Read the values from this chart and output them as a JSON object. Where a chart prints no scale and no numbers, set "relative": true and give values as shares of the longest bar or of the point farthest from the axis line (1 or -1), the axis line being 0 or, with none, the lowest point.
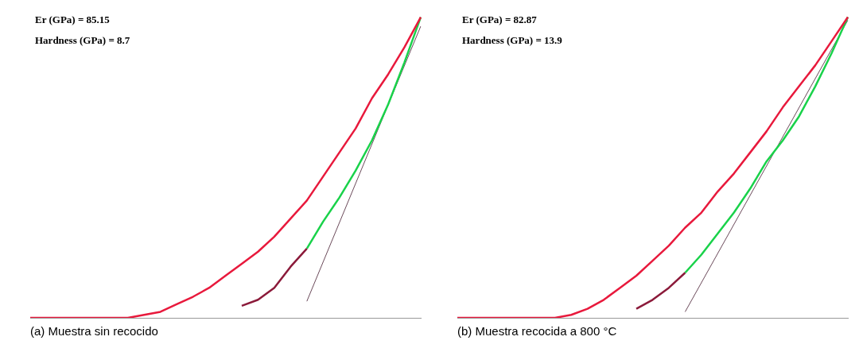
{
  "chart_data": [
    {
      "type": "line",
      "title": "(a)  Muestra sin recocido",
      "relative": true,
      "categories": [
        null,
        null,
        null,
        null,
        null,
        null,
        null,
        null,
        null,
        null,
        null,
        null,
        null,
        null,
        null,
        null,
        null,
        null,
        null,
        null,
        null,
        null,
        null,
        null,
        null
      ],
      "series": [
        {
          "color": "#e8193c",
          "values": [
            0,
            0,
            0,
            0,
            0,
            0,
            0,
            0.01,
            0.02,
            0.045,
            0.07,
            0.1,
            0.14,
            0.18,
            0.22,
            0.27,
            0.33,
            0.39,
            0.47,
            0.55,
            0.63,
            0.73,
            0.81,
            0.9,
            1
          ]
        },
        {
          "color": "#8b1a3a",
          "values": [
            null,
            null,
            null,
            null,
            null,
            null,
            null,
            null,
            null,
            null,
            null,
            null,
            null,
            0.04,
            0.06,
            0.1,
            0.17,
            0.23,
            null,
            null,
            null,
            null,
            null,
            null,
            null
          ]
        },
        {
          "color": "#19d24a",
          "values": [
            null,
            null,
            null,
            null,
            null,
            null,
            null,
            null,
            null,
            null,
            null,
            null,
            null,
            null,
            null,
            null,
            null,
            0.23,
            0.32,
            0.4,
            0.49,
            0.59,
            0.71,
            0.85,
            1
          ]
        },
        {
          "color": "#6b4a5a",
          "values": [
            null,
            null,
            null,
            null,
            null,
            null,
            null,
            null,
            null,
            null,
            null,
            null,
            null,
            null,
            null,
            null,
            null,
            0.055,
            null,
            null,
            null,
            null,
            null,
            null,
            0.97
          ]
        }
      ],
      "annotations": [
        "Er (GPa) = 85.15",
        "Hardness (GPa) = 8.7"
      ]
    },
    {
      "type": "line",
      "title": "(b) Muestra recocida a 800 °C",
      "relative": true,
      "categories": [
        null,
        null,
        null,
        null,
        null,
        null,
        null,
        null,
        null,
        null,
        null,
        null,
        null,
        null,
        null,
        null,
        null,
        null,
        null,
        null,
        null,
        null,
        null,
        null,
        null
      ],
      "series": [
        {
          "color": "#e8193c",
          "values": [
            0,
            0,
            0,
            0,
            0,
            0,
            0,
            0.01,
            0.03,
            0.06,
            0.1,
            0.14,
            0.19,
            0.24,
            0.3,
            0.35,
            0.42,
            0.48,
            0.55,
            0.62,
            0.7,
            0.77,
            0.84,
            0.92,
            1
          ]
        },
        {
          "color": "#8b1a3a",
          "values": [
            null,
            null,
            null,
            null,
            null,
            null,
            null,
            null,
            null,
            null,
            null,
            0.03,
            0.06,
            0.1,
            0.15,
            null,
            null,
            null,
            null,
            null,
            null,
            null,
            null,
            null,
            null
          ]
        },
        {
          "color": "#19d24a",
          "values": [
            null,
            null,
            null,
            null,
            null,
            null,
            null,
            null,
            null,
            null,
            null,
            null,
            null,
            null,
            0.15,
            0.21,
            0.28,
            0.35,
            0.43,
            0.52,
            0.59,
            0.67,
            0.77,
            0.88,
            1
          ]
        },
        {
          "color": "#6b4a5a",
          "values": [
            null,
            null,
            null,
            null,
            null,
            null,
            null,
            null,
            null,
            null,
            null,
            null,
            null,
            null,
            0.02,
            null,
            null,
            null,
            null,
            null,
            null,
            null,
            null,
            null,
            0.99
          ]
        }
      ],
      "annotations": [
        "Er (GPa) = 82.87",
        "Hardness (GPa) = 13.9"
      ]
    }
  ]
}
